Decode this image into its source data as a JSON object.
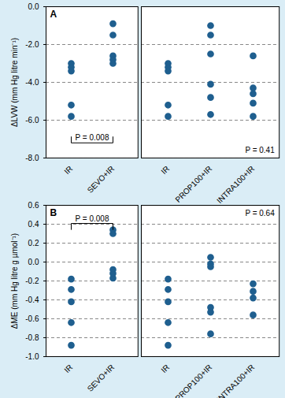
{
  "chart_data": [
    {
      "type": "scatter",
      "title": "A",
      "y_label": "ΔLVW (mm Hg litre min⁻¹)",
      "categories": [
        "IR",
        "SEVO+IR"
      ],
      "values": [
        [
          -3.0,
          -3.2,
          -3.4,
          -5.2,
          -5.8
        ],
        [
          -0.9,
          -1.5,
          -2.6,
          -2.8,
          -3.0
        ]
      ],
      "ylim": [
        -8,
        0
      ],
      "yticks": [
        {
          "value": -8,
          "label": "-8.0"
        },
        {
          "value": -6,
          "label": "-6.0"
        },
        {
          "value": -4,
          "label": "-4.0"
        },
        {
          "value": -2,
          "label": "-2.0"
        },
        {
          "value": 0,
          "label": "0.0"
        }
      ],
      "grid": true,
      "color": "#1f5f8f",
      "marker": "circle",
      "annotations": [
        {
          "text": "P = 0.008",
          "between": [
            "IR",
            "SEVO+IR"
          ]
        }
      ]
    },
    {
      "type": "scatter",
      "categories": [
        "IR",
        "PROP100+IR",
        "INTRA100+IR"
      ],
      "values": [
        [
          -3.0,
          -3.2,
          -3.4,
          -5.2,
          -5.8
        ],
        [
          -1.0,
          -1.5,
          -2.5,
          -4.1,
          -4.8,
          -5.7
        ],
        [
          -2.6,
          -4.3,
          -4.6,
          -5.1,
          -5.8
        ]
      ],
      "ylim": [
        -8,
        0
      ],
      "yticks": [
        {
          "value": -8,
          "label": "-8.0"
        },
        {
          "value": -6,
          "label": "-6.0"
        },
        {
          "value": -4,
          "label": "-4.0"
        },
        {
          "value": -2,
          "label": "-2.0"
        },
        {
          "value": 0,
          "label": "0.0"
        }
      ],
      "grid": true,
      "tick_labels": "x",
      "color": "#1f5f8f",
      "marker": "circle",
      "annotations": [
        {
          "text": "P = 0.41"
        }
      ]
    },
    {
      "type": "scatter",
      "title": "B",
      "y_label": "ΔME (mm Hg litre g µmol⁻¹)",
      "categories": [
        "IR",
        "SEVO+IR"
      ],
      "values": [
        [
          -0.18,
          -0.29,
          -0.42,
          -0.64,
          -0.88
        ],
        [
          0.34,
          0.3,
          -0.08,
          -0.12,
          -0.17
        ]
      ],
      "ylim": [
        -1.0,
        0.6
      ],
      "yticks": [
        {
          "value": -1.0,
          "label": "-1.0"
        },
        {
          "value": -0.8,
          "label": "-0.8"
        },
        {
          "value": -0.6,
          "label": "-0.6"
        },
        {
          "value": -0.4,
          "label": "-0.4"
        },
        {
          "value": -0.2,
          "label": "-0.2"
        },
        {
          "value": 0,
          "label": "0.0"
        },
        0.2,
        0.4,
        0.6
      ],
      "grid": true,
      "color": "#1f5f8f",
      "marker": "circle",
      "annotations": [
        {
          "text": "P = 0.008",
          "between": [
            "IR",
            "SEVO+IR"
          ]
        }
      ]
    },
    {
      "type": "scatter",
      "categories": [
        "IR",
        "PROP100+IR",
        "INTRA100+IR"
      ],
      "values": [
        [
          -0.18,
          -0.29,
          -0.42,
          -0.64,
          -0.88
        ],
        [
          0.05,
          -0.02,
          -0.05,
          -0.48,
          -0.53,
          -0.76
        ],
        [
          -0.23,
          -0.31,
          -0.38,
          -0.56
        ]
      ],
      "ylim": [
        -1.0,
        0.6
      ],
      "yticks": [
        {
          "value": -1.0,
          "label": "-1.0"
        },
        {
          "value": -0.8,
          "label": "-0.8"
        },
        {
          "value": -0.6,
          "label": "-0.6"
        },
        {
          "value": -0.4,
          "label": "-0.4"
        },
        {
          "value": -0.2,
          "label": "-0.2"
        },
        {
          "value": 0,
          "label": "0.0"
        },
        0.2,
        0.4,
        0.6
      ],
      "grid": true,
      "tick_labels": "x",
      "color": "#1f5f8f",
      "marker": "circle",
      "annotations": [
        {
          "text": "P = 0.64"
        }
      ]
    }
  ]
}
